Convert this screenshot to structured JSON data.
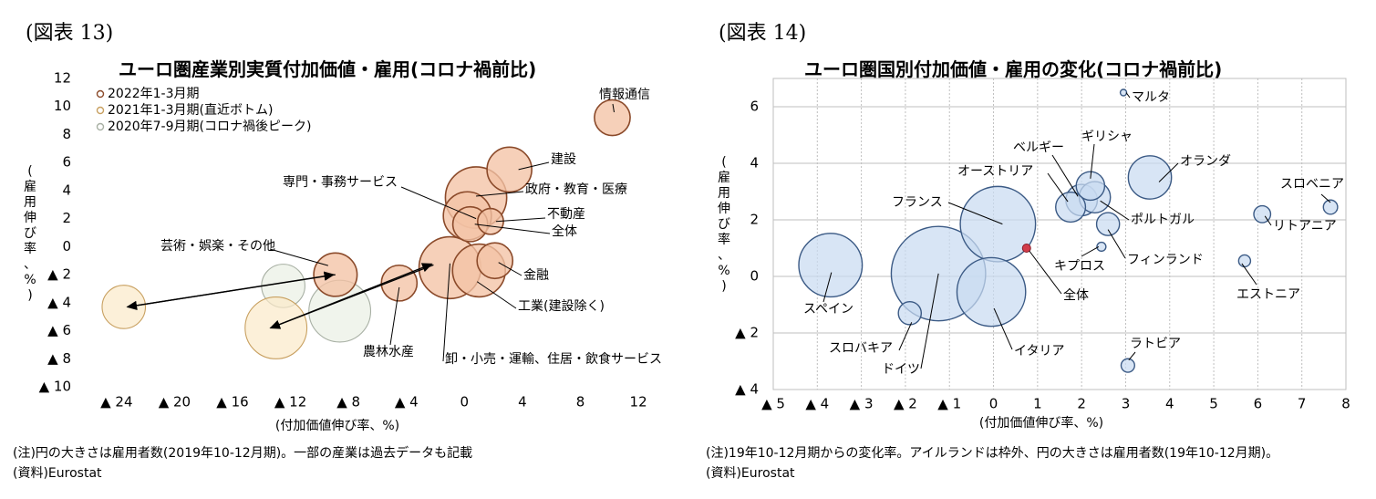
{
  "colors": {
    "grid": "#bfbfbf",
    "series_2022": "#f4c3a5",
    "series_2022_stroke": "#8b4a2a",
    "series_2021": "#fbe9c9",
    "series_2021_stroke": "#c8a060",
    "series_2020": "#e9efe4",
    "series_2020_stroke": "#a8b0a4",
    "bubble_blue": "#c9dbf1",
    "bubble_blue_stroke": "#3b5a85",
    "total_red": "#d23c4a"
  },
  "left": {
    "fig_label": "(図表 13)",
    "title": "ユーロ圏産業別実質付加価値・雇用(コロナ禍前比)",
    "ylabel": "(雇用伸び率、%)",
    "xlabel": "(付加価値伸び率、%)",
    "note1": "(注)円の大きさは雇用者数(2019年10-12月期)。一部の産業は過去データも記載",
    "note2": "(資料)Eurostat"
  },
  "right": {
    "fig_label": "(図表 14)",
    "title": "ユーロ圏国別付加価値・雇用の変化(コロナ禍前比)",
    "ylabel": "(雇用伸び率、%)",
    "xlabel": "(付加価値伸び率、%)",
    "note1": "(注)19年10-12月期からの変化率。アイルランドは枠外、円の大きさは雇用者数(19年10-12月期)。",
    "note2": "(資料)Eurostat"
  },
  "chart_data": [
    {
      "type": "scatter",
      "title": "ユーロ圏産業別実質付加価値・雇用(コロナ禍前比)",
      "xlabel": "(付加価値伸び率、%)",
      "ylabel": "(雇用伸び率、%)",
      "xlim": [
        -26,
        13
      ],
      "ylim": [
        -10,
        12
      ],
      "xticks": [
        -24,
        -20,
        -16,
        -12,
        -8,
        -4,
        0,
        4,
        8,
        12
      ],
      "xtick_labels": [
        "▲ 24",
        "▲ 20",
        "▲ 16",
        "▲ 12",
        "▲ 8",
        "▲ 4",
        "0",
        "4",
        "8",
        "12"
      ],
      "yticks": [
        -10,
        -8,
        -6,
        -4,
        -2,
        0,
        2,
        4,
        6,
        8,
        10,
        12
      ],
      "ytick_labels": [
        "▲ 10",
        "▲ 8",
        "▲ 6",
        "▲ 4",
        "▲ 2",
        "0",
        "2",
        "4",
        "6",
        "8",
        "10",
        "12"
      ],
      "grid": false,
      "legend_position": "top-left",
      "legend": [
        "2022年1-3月期",
        "2021年1-3月期(直近ボトム)",
        "2020年7-9月期(コロナ禍後ピーク)"
      ],
      "series": [
        {
          "name": "2022年1-3月期",
          "points": [
            {
              "label": "情報通信",
              "x": 10.2,
              "y": 9.2,
              "size": 2.1
            },
            {
              "label": "建設",
              "x": 3.1,
              "y": 5.5,
              "size": 3.3
            },
            {
              "label": "専門・事務サービス",
              "x": 0.8,
              "y": 3.5,
              "size": 6.2
            },
            {
              "label": "政府・教育・医療",
              "x": 0.2,
              "y": 2.2,
              "size": 3.8
            },
            {
              "label": "不動産",
              "x": 1.8,
              "y": 1.8,
              "size": 1.1
            },
            {
              "label": "全体",
              "x": 0.4,
              "y": 1.6,
              "size": 2.0
            },
            {
              "label": "芸術・娯楽・その他",
              "x": -8.9,
              "y": -2.0,
              "size": 3.1
            },
            {
              "label": "農林水産",
              "x": -4.5,
              "y": -2.6,
              "size": 2.1
            },
            {
              "label": "卸・小売・運輸、住居・飲食サービス",
              "x": -1.0,
              "y": -1.5,
              "size": 6.3
            },
            {
              "label": "工業(建設除く)",
              "x": 1.0,
              "y": -1.7,
              "size": 4.6
            },
            {
              "label": "金融",
              "x": 2.1,
              "y": -1.0,
              "size": 2.1
            }
          ]
        },
        {
          "name": "2021年1-3月期(直近ボトム)",
          "points": [
            {
              "label": "芸術・娯楽・その他",
              "x": -23.5,
              "y": -4.3,
              "size": 3.1
            },
            {
              "label": "卸・小売・運輸、住居・飲食サービス",
              "x": -13.0,
              "y": -5.8,
              "size": 6.3
            }
          ]
        },
        {
          "name": "2020年7-9月期(コロナ禍後ピーク)",
          "points": [
            {
              "label": "芸術・娯楽・その他",
              "x": -12.5,
              "y": -2.8,
              "size": 3.1
            },
            {
              "label": "卸・小売・運輸、住居・飲食サービス",
              "x": -8.6,
              "y": -4.6,
              "size": 6.3
            }
          ]
        }
      ],
      "labels": [
        "情報通信",
        "建設",
        "専門・事務サービス",
        "政府・教育・医療",
        "不動産",
        "全体",
        "芸術・娯楽・その他",
        "金融",
        "工業(建設除く)",
        "農林水産",
        "卸・小売・運輸、住居・飲食サービス"
      ]
    },
    {
      "type": "scatter",
      "title": "ユーロ圏国別付加価値・雇用の変化(コロナ禍前比)",
      "xlabel": "(付加価値伸び率、%)",
      "ylabel": "(雇用伸び率、%)",
      "xlim": [
        -5,
        8
      ],
      "ylim": [
        -4,
        7
      ],
      "xticks": [
        -5,
        -4,
        -3,
        -2,
        -1,
        0,
        1,
        2,
        3,
        4,
        5,
        6,
        7,
        8
      ],
      "xtick_labels": [
        "▲ 5",
        "▲ 4",
        "▲ 3",
        "▲ 2",
        "▲ 1",
        "0",
        "1",
        "2",
        "3",
        "4",
        "5",
        "6",
        "7",
        "8"
      ],
      "yticks": [
        -4,
        -2,
        0,
        2,
        4,
        6
      ],
      "ytick_labels": [
        "▲ 4",
        "▲ 2",
        "0",
        "2",
        "4",
        "6"
      ],
      "grid": true,
      "points": [
        {
          "label": "マルタ",
          "x": 2.95,
          "y": 6.5,
          "size": 0.2
        },
        {
          "label": "オランダ",
          "x": 3.55,
          "y": 3.5,
          "size": 9.2
        },
        {
          "label": "ギリシャ",
          "x": 2.2,
          "y": 3.2,
          "size": 4.0
        },
        {
          "label": "ベルギー",
          "x": 2.0,
          "y": 2.7,
          "size": 4.9
        },
        {
          "label": "オーストリア",
          "x": 1.75,
          "y": 2.45,
          "size": 4.4
        },
        {
          "label": "ポルトガル",
          "x": 2.3,
          "y": 2.8,
          "size": 4.8
        },
        {
          "label": "フィンランド",
          "x": 2.6,
          "y": 1.85,
          "size": 2.6
        },
        {
          "label": "キプロス",
          "x": 2.45,
          "y": 1.05,
          "size": 0.4
        },
        {
          "label": "スロベニア",
          "x": 7.65,
          "y": 2.45,
          "size": 1.0
        },
        {
          "label": "リトアニア",
          "x": 6.1,
          "y": 2.2,
          "size": 1.4
        },
        {
          "label": "エストニア",
          "x": 5.7,
          "y": 0.55,
          "size": 0.7
        },
        {
          "label": "ラトビア",
          "x": 3.05,
          "y": -3.15,
          "size": 0.9
        },
        {
          "label": "フランス",
          "x": 0.1,
          "y": 1.85,
          "size": 28.0
        },
        {
          "label": "スペイン",
          "x": -3.7,
          "y": 0.4,
          "size": 19.9
        },
        {
          "label": "スロバキア",
          "x": -1.9,
          "y": -1.3,
          "size": 2.6
        },
        {
          "label": "ドイツ",
          "x": -1.25,
          "y": 0.1,
          "size": 44.0
        },
        {
          "label": "イタリア",
          "x": -0.05,
          "y": -0.55,
          "size": 23.3
        },
        {
          "label": "全体",
          "x": 0.75,
          "y": 1.0,
          "size": 0.0
        }
      ]
    }
  ]
}
